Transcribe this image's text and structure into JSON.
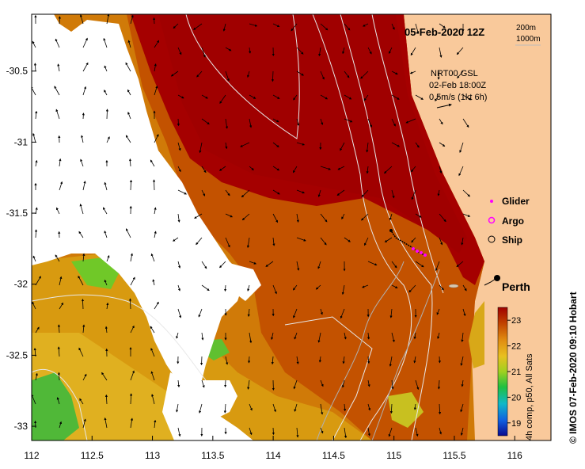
{
  "title": "05-Feb-2020 12Z",
  "depth_legend": [
    "200m",
    "1000m"
  ],
  "current_info": {
    "product": "NRT00 GSL",
    "time": "02-Feb 18:00Z",
    "scale": "0.5m/s (1kt 6h)"
  },
  "legend": [
    {
      "label": "Glider",
      "symbol": "magenta-dot-icon"
    },
    {
      "label": "Argo",
      "symbol": "magenta-ring-icon"
    },
    {
      "label": "Ship",
      "symbol": "black-ring-icon"
    }
  ],
  "place": "Perth",
  "colorbar": {
    "label": "4h comp, p50, All Sats",
    "ticks": [
      19,
      20,
      21,
      22,
      23
    ],
    "range": [
      18.5,
      23.5
    ]
  },
  "credit": "© IMOS 07-Feb-2020 09:10 Hobart",
  "axes": {
    "x_ticks": [
      "112",
      "112.5",
      "113",
      "113.5",
      "114",
      "114.5",
      "115",
      "115.5",
      "116"
    ],
    "y_ticks": [
      "-30.5",
      "-31",
      "-31.5",
      "-32",
      "-32.5",
      "-33"
    ],
    "xlim": [
      112,
      116.3
    ],
    "ylim": [
      -33.1,
      -30.1
    ]
  },
  "colors": {
    "land": "#f9c99b",
    "warm": "#a80000",
    "mid": "#c85a00",
    "cool": "#d89a10",
    "green": "#60c020",
    "glider": "#ff00ff"
  }
}
